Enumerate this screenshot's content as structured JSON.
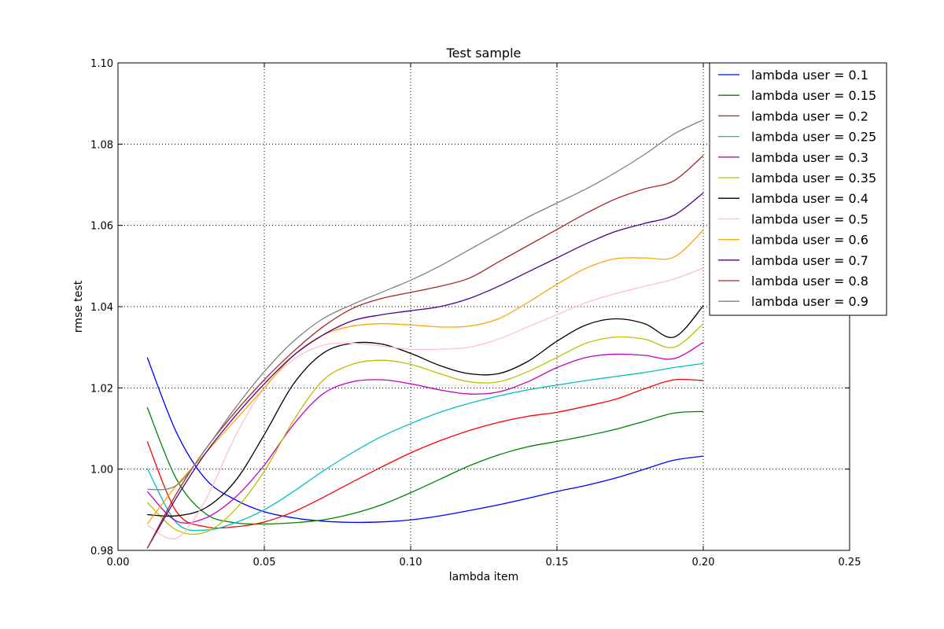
{
  "chart_data": {
    "type": "line",
    "title": "Test sample",
    "xlabel": "lambda item",
    "ylabel": "rmse test",
    "xlim": [
      0.0,
      0.25
    ],
    "ylim": [
      0.98,
      1.1
    ],
    "xticks": [
      0.0,
      0.05,
      0.1,
      0.15,
      0.2,
      0.25
    ],
    "xtick_labels": [
      "0.00",
      "0.05",
      "0.10",
      "0.15",
      "0.20",
      "0.25"
    ],
    "yticks": [
      0.98,
      1.0,
      1.02,
      1.04,
      1.06,
      1.08,
      1.1
    ],
    "ytick_labels": [
      "0.98",
      "1.00",
      "1.02",
      "1.04",
      "1.06",
      "1.08",
      "1.10"
    ],
    "grid": true,
    "legend_position": "top-right",
    "series": [
      {
        "name": "lambda user = 0.1",
        "color": "#0000ff",
        "x": [
          0.01,
          0.02,
          0.03,
          0.04,
          0.05,
          0.06,
          0.07,
          0.08,
          0.09,
          0.1,
          0.11,
          0.12,
          0.13,
          0.14,
          0.15,
          0.16,
          0.17,
          0.18,
          0.19,
          0.2
        ],
        "y": [
          1.0275,
          1.009,
          0.9975,
          0.9925,
          0.9895,
          0.988,
          0.9872,
          0.9869,
          0.987,
          0.9875,
          0.9885,
          0.9898,
          0.9912,
          0.9928,
          0.9945,
          0.996,
          0.9978,
          1.0,
          1.0022,
          1.0032
        ]
      },
      {
        "name": "lambda user = 0.15",
        "color": "#008000",
        "x": [
          0.01,
          0.02,
          0.03,
          0.04,
          0.05,
          0.06,
          0.07,
          0.08,
          0.09,
          0.1,
          0.11,
          0.12,
          0.13,
          0.14,
          0.15,
          0.16,
          0.17,
          0.18,
          0.19,
          0.2
        ],
        "y": [
          1.0152,
          0.9975,
          0.989,
          0.9868,
          0.9865,
          0.9868,
          0.9875,
          0.989,
          0.9912,
          0.9942,
          0.9975,
          1.0008,
          1.0035,
          1.0055,
          1.0068,
          1.0082,
          1.0098,
          1.0118,
          1.0138,
          1.0142
        ]
      },
      {
        "name": "lambda user = 0.2",
        "color": "#ff0000",
        "x": [
          0.01,
          0.02,
          0.03,
          0.04,
          0.05,
          0.06,
          0.07,
          0.08,
          0.09,
          0.1,
          0.11,
          0.12,
          0.13,
          0.14,
          0.15,
          0.16,
          0.17,
          0.18,
          0.19,
          0.2
        ],
        "y": [
          1.0068,
          0.9895,
          0.9858,
          0.9858,
          0.987,
          0.9895,
          0.993,
          0.9968,
          1.0005,
          1.004,
          1.007,
          1.0095,
          1.0115,
          1.013,
          1.014,
          1.0155,
          1.0172,
          1.0198,
          1.022,
          1.0218
        ]
      },
      {
        "name": "lambda user = 0.25",
        "color": "#00bfbf",
        "x": [
          0.01,
          0.02,
          0.03,
          0.04,
          0.05,
          0.06,
          0.07,
          0.08,
          0.09,
          0.1,
          0.11,
          0.12,
          0.13,
          0.14,
          0.15,
          0.16,
          0.17,
          0.18,
          0.19,
          0.2
        ],
        "y": [
          1.0002,
          0.9868,
          0.985,
          0.9868,
          0.99,
          0.9945,
          0.9995,
          1.004,
          1.008,
          1.0112,
          1.014,
          1.0162,
          1.018,
          1.0195,
          1.0207,
          1.0218,
          1.0228,
          1.0238,
          1.025,
          1.026
        ]
      },
      {
        "name": "lambda user = 0.3",
        "color": "#bf00bf",
        "x": [
          0.01,
          0.02,
          0.03,
          0.04,
          0.05,
          0.06,
          0.07,
          0.08,
          0.09,
          0.1,
          0.11,
          0.12,
          0.13,
          0.14,
          0.15,
          0.16,
          0.17,
          0.18,
          0.19,
          0.2
        ],
        "y": [
          0.9945,
          0.9872,
          0.988,
          0.993,
          1.001,
          1.011,
          1.0185,
          1.0215,
          1.022,
          1.021,
          1.0195,
          1.0185,
          1.019,
          1.0215,
          1.025,
          1.0275,
          1.0283,
          1.028,
          1.0272,
          1.0312
        ]
      },
      {
        "name": "lambda user = 0.35",
        "color": "#bfbf00",
        "x": [
          0.01,
          0.02,
          0.03,
          0.04,
          0.05,
          0.06,
          0.07,
          0.08,
          0.09,
          0.1,
          0.11,
          0.12,
          0.13,
          0.14,
          0.15,
          0.16,
          0.17,
          0.18,
          0.19,
          0.2
        ],
        "y": [
          0.9918,
          0.985,
          0.9845,
          0.99,
          0.9995,
          1.012,
          1.0218,
          1.0258,
          1.0268,
          1.0258,
          1.0235,
          1.0215,
          1.0215,
          1.024,
          1.0275,
          1.031,
          1.0325,
          1.032,
          1.03,
          1.0358
        ]
      },
      {
        "name": "lambda user = 0.4",
        "color": "#000000",
        "x": [
          0.01,
          0.02,
          0.03,
          0.04,
          0.05,
          0.06,
          0.07,
          0.08,
          0.09,
          0.1,
          0.11,
          0.12,
          0.13,
          0.14,
          0.15,
          0.16,
          0.17,
          0.18,
          0.19,
          0.2
        ],
        "y": [
          0.9888,
          0.9885,
          0.9905,
          0.997,
          1.0085,
          1.021,
          1.0285,
          1.031,
          1.0308,
          1.0285,
          1.0255,
          1.0235,
          1.0235,
          1.0265,
          1.0315,
          1.0355,
          1.037,
          1.0358,
          1.0325,
          1.0402
        ]
      },
      {
        "name": "lambda user = 0.5",
        "color": "#ffc0cb",
        "x": [
          0.01,
          0.02,
          0.03,
          0.04,
          0.05,
          0.06,
          0.07,
          0.08,
          0.09,
          0.1,
          0.11,
          0.12,
          0.13,
          0.14,
          0.15,
          0.16,
          0.17,
          0.18,
          0.19,
          0.2
        ],
        "y": [
          0.9862,
          0.983,
          0.9925,
          1.008,
          1.02,
          1.027,
          1.0305,
          1.031,
          1.0303,
          1.0295,
          1.0295,
          1.03,
          1.032,
          1.035,
          1.038,
          1.041,
          1.0432,
          1.045,
          1.0468,
          1.0495
        ]
      },
      {
        "name": "lambda user = 0.6",
        "color": "#ffa500",
        "x": [
          0.01,
          0.02,
          0.03,
          0.04,
          0.05,
          0.06,
          0.07,
          0.08,
          0.09,
          0.1,
          0.11,
          0.12,
          0.13,
          0.14,
          0.15,
          0.16,
          0.17,
          0.18,
          0.19,
          0.2
        ],
        "y": [
          0.9865,
          0.996,
          1.004,
          1.012,
          1.02,
          1.028,
          1.033,
          1.0352,
          1.0358,
          1.0355,
          1.035,
          1.0352,
          1.037,
          1.041,
          1.0455,
          1.0495,
          1.0518,
          1.052,
          1.0522,
          1.0588
        ]
      },
      {
        "name": "lambda user = 0.7",
        "color": "#4b0082",
        "x": [
          0.01,
          0.02,
          0.03,
          0.04,
          0.05,
          0.06,
          0.07,
          0.08,
          0.09,
          0.1,
          0.11,
          0.12,
          0.13,
          0.14,
          0.15,
          0.16,
          0.17,
          0.18,
          0.19,
          0.2
        ],
        "y": [
          0.9805,
          0.993,
          1.004,
          1.013,
          1.021,
          1.028,
          1.033,
          1.0365,
          1.038,
          1.039,
          1.04,
          1.042,
          1.045,
          1.0485,
          1.052,
          1.0555,
          1.0585,
          1.0605,
          1.0625,
          1.068
        ]
      },
      {
        "name": "lambda user = 0.8",
        "color": "#a52a2a",
        "x": [
          0.01,
          0.02,
          0.03,
          0.04,
          0.05,
          0.06,
          0.07,
          0.08,
          0.09,
          0.1,
          0.11,
          0.12,
          0.13,
          0.14,
          0.15,
          0.16,
          0.17,
          0.18,
          0.19,
          0.2
        ],
        "y": [
          0.9805,
          0.994,
          1.005,
          1.014,
          1.022,
          1.029,
          1.035,
          1.0395,
          1.042,
          1.0435,
          1.045,
          1.047,
          1.051,
          1.055,
          1.059,
          1.063,
          1.0665,
          1.069,
          1.071,
          1.0772
        ]
      },
      {
        "name": "lambda user = 0.9",
        "color": "#808080",
        "x": [
          0.01,
          0.02,
          0.03,
          0.04,
          0.05,
          0.06,
          0.07,
          0.08,
          0.09,
          0.1,
          0.11,
          0.12,
          0.13,
          0.14,
          0.15,
          0.16,
          0.17,
          0.18,
          0.19,
          0.2
        ],
        "y": [
          0.995,
          0.996,
          1.005,
          1.015,
          1.024,
          1.0315,
          1.037,
          1.0405,
          1.0435,
          1.0465,
          1.05,
          1.054,
          1.058,
          1.062,
          1.0655,
          1.069,
          1.073,
          1.0775,
          1.0825,
          1.086
        ]
      }
    ]
  }
}
